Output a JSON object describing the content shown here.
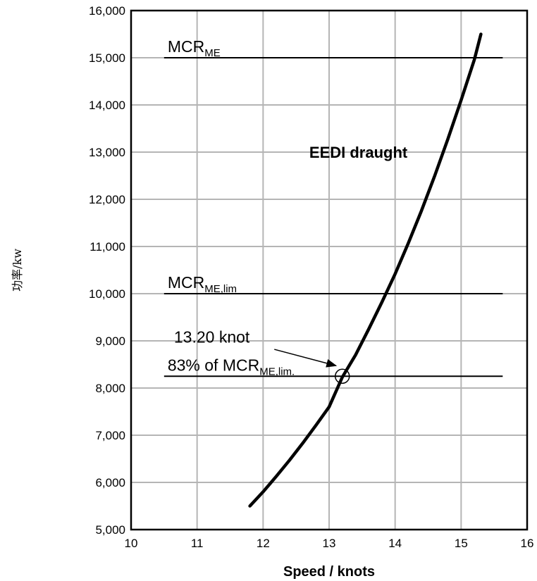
{
  "chart_data": {
    "type": "line",
    "xlabel": "Speed / knots",
    "ylabel": "功率/kw",
    "xlim": [
      10,
      16
    ],
    "ylim": [
      5000,
      16000
    ],
    "x_ticks": [
      "10",
      "11",
      "12",
      "13",
      "14",
      "15",
      "16"
    ],
    "y_ticks": [
      "5,000",
      "6,000",
      "7,000",
      "8,000",
      "9,000",
      "10,000",
      "11,000",
      "12,000",
      "13,000",
      "14,000",
      "15,000",
      "16,000"
    ],
    "grid": true,
    "series": [
      {
        "name": "EEDI draught",
        "x": [
          11.8,
          12.0,
          12.2,
          12.4,
          12.6,
          12.8,
          13.0,
          13.2,
          13.4,
          13.6,
          13.8,
          14.0,
          14.2,
          14.4,
          14.6,
          14.8,
          15.0,
          15.2,
          15.3
        ],
        "y": [
          5500,
          5800,
          6130,
          6470,
          6830,
          7210,
          7600,
          8230,
          8700,
          9250,
          9820,
          10420,
          11070,
          11760,
          12500,
          13280,
          14100,
          14960,
          15500
        ]
      }
    ],
    "reference_lines": [
      {
        "label_main": "MCR",
        "label_sub": "ME",
        "label_tail": "",
        "y": 15000,
        "x_start": 10.5,
        "x_end": 15.63
      },
      {
        "label_main": "MCR",
        "label_sub": "ME,lim",
        "label_tail": "",
        "y": 10000,
        "x_start": 10.5,
        "x_end": 15.63
      },
      {
        "label_main": "83% of MCR",
        "label_sub": "ME,lim",
        "label_tail": ".",
        "y": 8250,
        "x_start": 10.5,
        "x_end": 15.63
      }
    ],
    "annotations": [
      {
        "text": "13.20 knot",
        "x": 13.2,
        "y": 8250
      }
    ],
    "colors": {
      "curve": "#000000",
      "grid": "#b5b5b5",
      "axes": "#000000"
    }
  }
}
